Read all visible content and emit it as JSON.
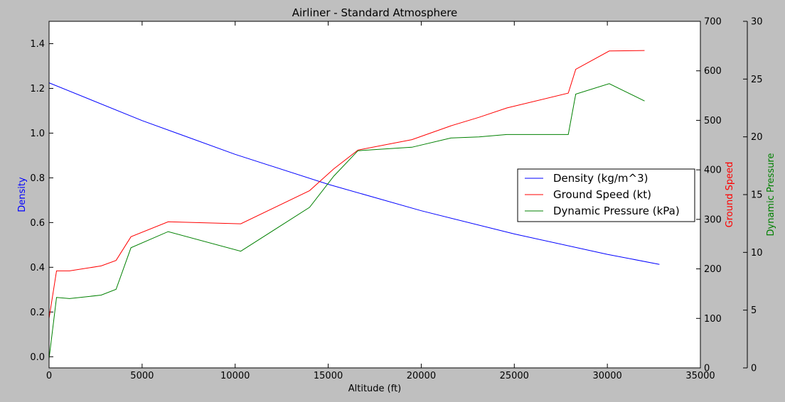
{
  "chart_data": {
    "type": "line",
    "title": "Airliner - Standard Atmosphere",
    "xlabel": "Altitude (ft)",
    "xlim": [
      0,
      35000
    ],
    "xticks": [
      0,
      5000,
      10000,
      15000,
      20000,
      25000,
      30000,
      35000
    ],
    "axes": {
      "left": {
        "label": "Density",
        "color": "#0000ff",
        "ylim": [
          -0.05,
          1.5
        ],
        "ticks": [
          "0.0",
          "0.2",
          "0.4",
          "0.6",
          "0.8",
          "1.0",
          "1.2",
          "1.4"
        ],
        "tick_values": [
          0,
          0.2,
          0.4,
          0.6,
          0.8,
          1.0,
          1.2,
          1.4
        ]
      },
      "right1": {
        "label": "Ground Speed",
        "color": "#ff0000",
        "ylim": [
          0,
          700
        ],
        "ticks": [
          "0",
          "100",
          "200",
          "300",
          "400",
          "500",
          "600",
          "700"
        ],
        "tick_values": [
          0,
          100,
          200,
          300,
          400,
          500,
          600,
          700
        ]
      },
      "right2": {
        "label": "Dynamic Pressure",
        "color": "#008000",
        "ylim": [
          0,
          30
        ],
        "ticks": [
          "0",
          "5",
          "10",
          "15",
          "20",
          "25",
          "30"
        ],
        "tick_values": [
          0,
          5,
          10,
          15,
          20,
          25,
          30
        ]
      }
    },
    "legend": {
      "position": "right",
      "entries": [
        "Density (kg/m^3)",
        "Ground Speed (kt)",
        "Dynamic Pressure (kPa)"
      ]
    },
    "series": [
      {
        "name": "Density (kg/m^3)",
        "axis": "left",
        "color": "#0000ff",
        "x": [
          0,
          5000,
          10000,
          15000,
          20000,
          25000,
          30000,
          32800
        ],
        "values": [
          1.225,
          1.056,
          0.905,
          0.771,
          0.653,
          0.549,
          0.458,
          0.413
        ]
      },
      {
        "name": "Ground Speed (kt)",
        "axis": "right1",
        "color": "#ff0000",
        "x": [
          0,
          400,
          1100,
          2800,
          3600,
          4400,
          6400,
          10300,
          14000,
          15300,
          16600,
          19500,
          21600,
          23100,
          24600,
          27900,
          28300,
          30100,
          32000
        ],
        "values": [
          100,
          196,
          196,
          206,
          217,
          265,
          295,
          291,
          358,
          402,
          440,
          461,
          489,
          506,
          525,
          555,
          603,
          640,
          641
        ]
      },
      {
        "name": "Dynamic Pressure (kPa)",
        "axis": "right2",
        "color": "#008000",
        "x": [
          0,
          400,
          1100,
          2800,
          3600,
          4400,
          6400,
          10300,
          14000,
          15300,
          16600,
          19500,
          21600,
          23100,
          24600,
          27900,
          28300,
          30100,
          32000
        ],
        "values": [
          0.8,
          6.1,
          6.0,
          6.3,
          6.8,
          10.4,
          11.8,
          10.1,
          13.9,
          16.6,
          18.8,
          19.1,
          19.9,
          20.0,
          20.2,
          20.2,
          23.7,
          24.6,
          23.1
        ]
      }
    ]
  }
}
